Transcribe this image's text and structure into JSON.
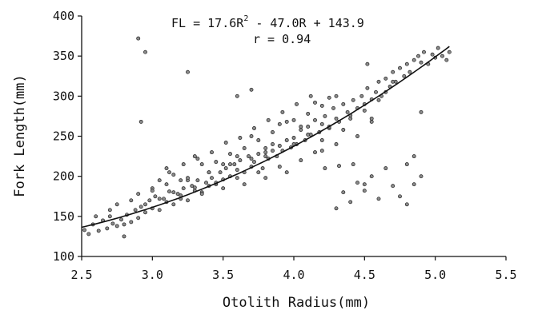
{
  "chart_data": {
    "type": "scatter",
    "title": "",
    "xlabel": "Otolith Radius(mm)",
    "ylabel": "Fork Length(mm)",
    "xlim": [
      2.5,
      5.5
    ],
    "ylim": [
      100,
      400
    ],
    "xticks": [
      "2.5",
      "3.0",
      "3.5",
      "4.0",
      "4.5",
      "5.0",
      "5.5"
    ],
    "yticks": [
      "100",
      "150",
      "200",
      "250",
      "300",
      "350",
      "400"
    ],
    "grid": false,
    "annotation": {
      "equation_prefix": "FL = 17.6R",
      "equation_exponent": "2",
      "equation_suffix": " - 47.0R + 143.9",
      "correlation": "r = 0.94"
    },
    "fit": {
      "a": 17.6,
      "b": -47.0,
      "c": 143.9,
      "x_range": [
        2.5,
        5.1
      ]
    },
    "points_x": [
      2.52,
      2.55,
      2.58,
      2.62,
      2.65,
      2.68,
      2.7,
      2.72,
      2.75,
      2.78,
      2.8,
      2.82,
      2.85,
      2.88,
      2.9,
      2.92,
      2.95,
      2.98,
      3.0,
      3.02,
      3.05,
      3.08,
      3.1,
      3.12,
      3.15,
      3.18,
      3.2,
      3.22,
      3.25,
      3.28,
      3.3,
      3.32,
      3.35,
      3.38,
      3.4,
      3.42,
      3.45,
      3.48,
      3.5,
      3.52,
      3.55,
      3.58,
      3.6,
      3.62,
      3.65,
      3.68,
      3.7,
      3.72,
      3.75,
      3.78,
      3.8,
      3.82,
      3.85,
      3.88,
      3.9,
      3.92,
      3.95,
      3.98,
      4.0,
      4.02,
      4.05,
      4.08,
      4.1,
      4.12,
      4.15,
      4.18,
      4.2,
      4.22,
      4.25,
      4.28,
      4.3,
      4.32,
      4.35,
      4.38,
      4.4,
      4.42,
      4.45,
      4.48,
      4.5,
      4.52,
      4.55,
      4.58,
      4.6,
      4.62,
      4.65,
      4.68,
      4.7,
      4.72,
      4.75,
      4.78,
      4.8,
      4.82,
      4.85,
      4.88,
      4.9,
      4.92,
      4.95,
      4.98,
      5.0,
      5.02,
      5.05,
      5.08,
      5.1,
      2.6,
      2.7,
      2.75,
      2.8,
      2.85,
      2.9,
      2.95,
      3.0,
      3.05,
      3.1,
      3.15,
      3.2,
      3.25,
      3.3,
      3.35,
      3.4,
      3.45,
      3.5,
      3.55,
      3.6,
      3.65,
      3.7,
      3.75,
      3.8,
      3.85,
      3.9,
      3.95,
      4.0,
      4.05,
      4.1,
      4.15,
      4.2,
      4.25,
      4.3,
      4.35,
      4.4,
      4.45,
      4.5,
      4.55,
      4.6,
      4.65,
      4.7,
      4.75,
      4.8,
      4.85,
      4.9,
      3.0,
      3.1,
      3.2,
      3.3,
      3.4,
      3.5,
      3.6,
      3.7,
      3.8,
      3.9,
      4.0,
      4.1,
      4.2,
      4.3,
      4.4,
      4.5,
      4.6,
      4.7,
      3.05,
      3.15,
      3.25,
      3.35,
      3.45,
      3.55,
      3.65,
      3.75,
      3.85,
      3.95,
      4.05,
      4.15,
      4.25,
      4.35,
      4.45,
      4.55,
      4.65,
      3.12,
      3.22,
      3.32,
      3.42,
      3.52,
      3.62,
      3.72,
      3.82,
      3.92,
      4.02,
      4.12,
      4.22,
      4.32,
      4.42,
      4.52,
      2.9,
      2.92,
      2.95,
      4.3,
      4.5,
      4.8,
      4.85,
      3.25,
      3.8,
      4.2,
      4.55,
      4.9,
      3.6,
      3.7,
      4.0,
      4.1,
      4.4,
      4.6
    ],
    "points_y": [
      133,
      128,
      140,
      132,
      145,
      135,
      150,
      141,
      138,
      146,
      125,
      152,
      143,
      158,
      148,
      162,
      155,
      170,
      160,
      175,
      158,
      172,
      168,
      181,
      165,
      178,
      176,
      185,
      170,
      188,
      182,
      195,
      180,
      192,
      188,
      198,
      190,
      205,
      196,
      210,
      200,
      215,
      208,
      220,
      205,
      225,
      212,
      218,
      228,
      210,
      230,
      222,
      240,
      225,
      238,
      232,
      245,
      236,
      248,
      240,
      258,
      245,
      262,
      252,
      270,
      255,
      265,
      275,
      260,
      285,
      272,
      268,
      290,
      280,
      276,
      295,
      285,
      300,
      290,
      310,
      296,
      305,
      318,
      300,
      322,
      312,
      330,
      318,
      335,
      325,
      340,
      330,
      345,
      350,
      342,
      355,
      340,
      352,
      348,
      360,
      350,
      345,
      355,
      150,
      158,
      165,
      140,
      170,
      178,
      165,
      185,
      172,
      190,
      180,
      172,
      195,
      186,
      178,
      205,
      192,
      185,
      215,
      198,
      190,
      222,
      205,
      198,
      232,
      212,
      205,
      240,
      220,
      252,
      230,
      245,
      262,
      240,
      258,
      272,
      250,
      282,
      268,
      295,
      305,
      318,
      175,
      165,
      190,
      200,
      182,
      210,
      195,
      225,
      205,
      215,
      225,
      250,
      235,
      265,
      270,
      278,
      288,
      300,
      168,
      182,
      172,
      188,
      195,
      202,
      198,
      215,
      218,
      228,
      235,
      245,
      255,
      268,
      262,
      292,
      298,
      180,
      192,
      200,
      210,
      205,
      215,
      222,
      230,
      242,
      248,
      260,
      270,
      280,
      290,
      300,
      210,
      213,
      215,
      340,
      372,
      268,
      355,
      160,
      190,
      215,
      225,
      330,
      225,
      232,
      272,
      280,
      300,
      308
    ]
  }
}
